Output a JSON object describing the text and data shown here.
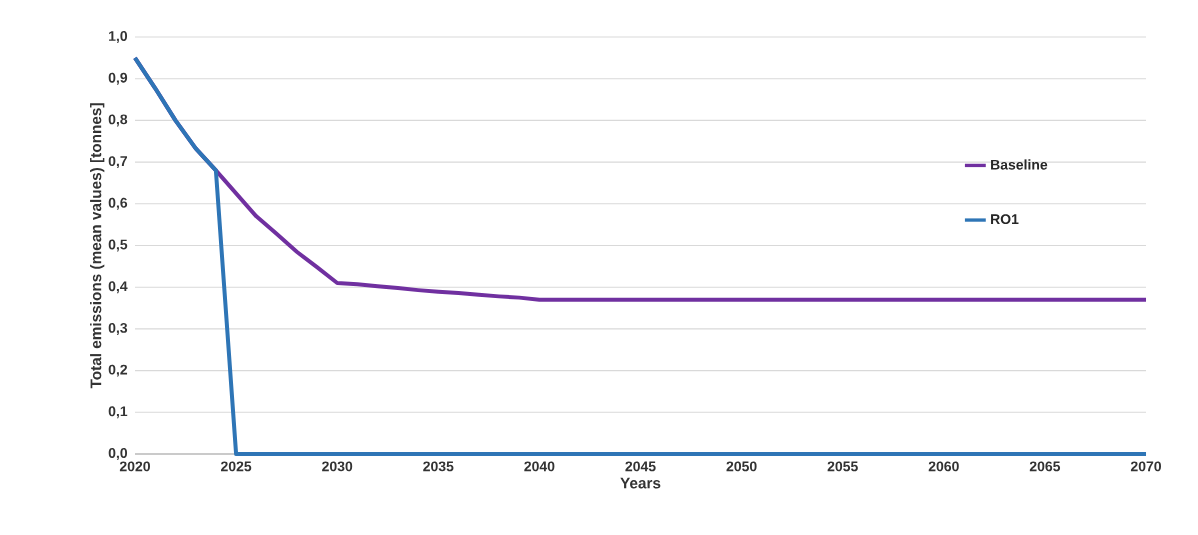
{
  "chart_data": {
    "type": "line",
    "xlabel": "Years",
    "ylabel": "Total emissions (mean values) [tonnes]",
    "x": [
      2020,
      2021,
      2022,
      2023,
      2024,
      2025,
      2026,
      2027,
      2028,
      2029,
      2030,
      2031,
      2032,
      2033,
      2034,
      2035,
      2036,
      2037,
      2038,
      2039,
      2040,
      2041,
      2042,
      2043,
      2044,
      2045,
      2046,
      2047,
      2048,
      2049,
      2050,
      2051,
      2052,
      2053,
      2054,
      2055,
      2056,
      2057,
      2058,
      2059,
      2060,
      2061,
      2062,
      2063,
      2064,
      2065,
      2066,
      2067,
      2068,
      2069,
      2070
    ],
    "series": [
      {
        "name": "Baseline",
        "color": "#7030a0",
        "values": [
          0.95,
          0.877,
          0.8,
          0.733,
          0.68,
          0.625,
          0.57,
          0.528,
          0.485,
          0.448,
          0.41,
          0.407,
          0.402,
          0.398,
          0.393,
          0.389,
          0.386,
          0.382,
          0.378,
          0.375,
          0.37,
          0.37,
          0.37,
          0.37,
          0.37,
          0.37,
          0.37,
          0.37,
          0.37,
          0.37,
          0.37,
          0.37,
          0.37,
          0.37,
          0.37,
          0.37,
          0.37,
          0.37,
          0.37,
          0.37,
          0.37,
          0.37,
          0.37,
          0.37,
          0.37,
          0.37,
          0.37,
          0.37,
          0.37,
          0.37,
          0.37
        ]
      },
      {
        "name": "RO1",
        "color": "#2e75b6",
        "values": [
          0.95,
          0.877,
          0.8,
          0.733,
          0.68,
          0,
          0,
          0,
          0,
          0,
          0,
          0,
          0,
          0,
          0,
          0,
          0,
          0,
          0,
          0,
          0,
          0,
          0,
          0,
          0,
          0,
          0,
          0,
          0,
          0,
          0,
          0,
          0,
          0,
          0,
          0,
          0,
          0,
          0,
          0,
          0,
          0,
          0,
          0,
          0,
          0,
          0,
          0,
          0,
          0,
          0
        ]
      }
    ],
    "xlim": [
      2020,
      2070
    ],
    "ylim": [
      0,
      1.0
    ],
    "xticks": [
      2020,
      2025,
      2030,
      2035,
      2040,
      2045,
      2050,
      2055,
      2060,
      2065,
      2070
    ],
    "yticks": [
      {
        "value": 0,
        "label": "0,0"
      },
      {
        "value": 0.1,
        "label": "0,1"
      },
      {
        "value": 0.2,
        "label": "0,2"
      },
      {
        "value": 0.3,
        "label": "0,3"
      },
      {
        "value": 0.4,
        "label": "0,4"
      },
      {
        "value": 0.5,
        "label": "0,5"
      },
      {
        "value": 0.6,
        "label": "0,6"
      },
      {
        "value": 0.7,
        "label": "0,7"
      },
      {
        "value": 0.8,
        "label": "0,8"
      },
      {
        "value": 0.9,
        "label": "0,9"
      },
      {
        "value": 1.0,
        "label": "1,0"
      }
    ],
    "grid": "y",
    "legend": "right",
    "marker": "none",
    "line_style": "solid"
  }
}
